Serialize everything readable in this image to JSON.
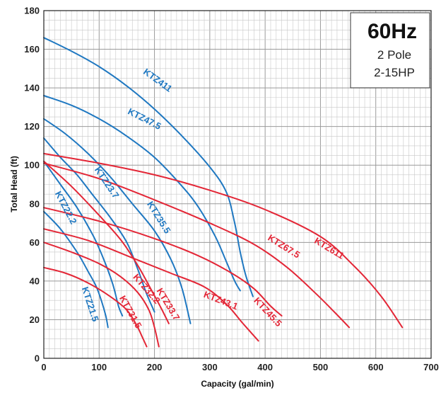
{
  "chart_data": {
    "type": "line",
    "title": "",
    "xlabel": "Capacity (gal/min)",
    "ylabel": "Total Head (ft)",
    "xlim": [
      0,
      700
    ],
    "ylim": [
      0,
      180
    ],
    "x_ticks": [
      0,
      100,
      200,
      300,
      400,
      500,
      600,
      700
    ],
    "y_ticks": [
      0,
      20,
      40,
      60,
      80,
      100,
      120,
      140,
      160,
      180
    ],
    "grid": true,
    "info_box": {
      "frequency": "60Hz",
      "pole": "2 Pole",
      "power": "2-15HP"
    },
    "colors": {
      "blue_series": "#1f78c1",
      "red_series": "#e32636",
      "grid": "#c8c8c8"
    },
    "series": [
      {
        "name": "KTZ411",
        "color": "#1f78c1",
        "points": [
          [
            0,
            166
          ],
          [
            50,
            159
          ],
          [
            100,
            151
          ],
          [
            150,
            141
          ],
          [
            200,
            129
          ],
          [
            250,
            115
          ],
          [
            300,
            99
          ],
          [
            330,
            86
          ],
          [
            345,
            70
          ],
          [
            355,
            55
          ],
          [
            365,
            43
          ],
          [
            378,
            32
          ]
        ]
      },
      {
        "name": "KTZ47.5",
        "color": "#1f78c1",
        "points": [
          [
            0,
            136
          ],
          [
            50,
            131
          ],
          [
            100,
            124
          ],
          [
            150,
            115
          ],
          [
            200,
            104
          ],
          [
            250,
            89
          ],
          [
            280,
            78
          ],
          [
            310,
            63
          ],
          [
            330,
            50
          ],
          [
            345,
            40
          ],
          [
            355,
            35
          ]
        ]
      },
      {
        "name": "KTZ35.5",
        "color": "#1f78c1",
        "points": [
          [
            0,
            124
          ],
          [
            40,
            116
          ],
          [
            80,
            106
          ],
          [
            120,
            94
          ],
          [
            160,
            80
          ],
          [
            200,
            66
          ],
          [
            230,
            51
          ],
          [
            250,
            36
          ],
          [
            265,
            18
          ]
        ]
      },
      {
        "name": "KTZ23.7",
        "color": "#1f78c1",
        "points": [
          [
            0,
            114
          ],
          [
            30,
            104
          ],
          [
            60,
            95
          ],
          [
            90,
            84
          ],
          [
            120,
            73
          ],
          [
            150,
            60
          ],
          [
            170,
            46
          ],
          [
            185,
            34
          ],
          [
            200,
            24
          ]
        ]
      },
      {
        "name": "KTZ22.2",
        "color": "#1f78c1",
        "points": [
          [
            0,
            102
          ],
          [
            30,
            90
          ],
          [
            60,
            78
          ],
          [
            90,
            63
          ],
          [
            110,
            50
          ],
          [
            125,
            38
          ],
          [
            135,
            27
          ],
          [
            142,
            22
          ]
        ]
      },
      {
        "name": "KTZ21.5",
        "color": "#1f78c1",
        "points": [
          [
            0,
            76
          ],
          [
            30,
            67
          ],
          [
            60,
            55
          ],
          [
            80,
            45
          ],
          [
            95,
            37
          ],
          [
            105,
            29
          ],
          [
            112,
            22
          ],
          [
            116,
            16
          ]
        ]
      },
      {
        "name": "KTZ611",
        "color": "#e32636",
        "points": [
          [
            0,
            106
          ],
          [
            100,
            101
          ],
          [
            200,
            95
          ],
          [
            300,
            87
          ],
          [
            400,
            77
          ],
          [
            500,
            63
          ],
          [
            560,
            48
          ],
          [
            610,
            32
          ],
          [
            648,
            16
          ]
        ]
      },
      {
        "name": "KTZ67.5",
        "color": "#e32636",
        "points": [
          [
            0,
            101
          ],
          [
            100,
            93
          ],
          [
            200,
            82
          ],
          [
            300,
            70
          ],
          [
            380,
            59
          ],
          [
            440,
            47
          ],
          [
            490,
            34
          ],
          [
            525,
            24
          ],
          [
            552,
            16
          ]
        ]
      },
      {
        "name": "KTZ45.5",
        "color": "#e32636",
        "points": [
          [
            0,
            78
          ],
          [
            100,
            71
          ],
          [
            200,
            62
          ],
          [
            280,
            53
          ],
          [
            340,
            44
          ],
          [
            380,
            36
          ],
          [
            410,
            27
          ],
          [
            430,
            22
          ]
        ]
      },
      {
        "name": "KTZ43.1",
        "color": "#e32636",
        "points": [
          [
            0,
            67
          ],
          [
            80,
            61
          ],
          [
            160,
            52
          ],
          [
            230,
            44
          ],
          [
            290,
            37
          ],
          [
            330,
            28
          ],
          [
            360,
            18
          ],
          [
            388,
            9
          ]
        ]
      },
      {
        "name": "KTZ33.7",
        "color": "#e32636",
        "points": [
          [
            0,
            102
          ],
          [
            50,
            89
          ],
          [
            100,
            74
          ],
          [
            140,
            61
          ],
          [
            170,
            48
          ],
          [
            195,
            35
          ],
          [
            212,
            26
          ],
          [
            226,
            18
          ]
        ]
      },
      {
        "name": "KTZ32.2",
        "color": "#e32636",
        "points": [
          [
            0,
            60
          ],
          [
            50,
            55
          ],
          [
            100,
            49
          ],
          [
            140,
            42
          ],
          [
            170,
            34
          ],
          [
            190,
            25
          ],
          [
            200,
            16
          ],
          [
            208,
            6
          ]
        ]
      },
      {
        "name": "KTZ31.5",
        "color": "#e32636",
        "points": [
          [
            0,
            47
          ],
          [
            40,
            44
          ],
          [
            80,
            39
          ],
          [
            120,
            32
          ],
          [
            150,
            25
          ],
          [
            168,
            17
          ],
          [
            178,
            11
          ],
          [
            186,
            6
          ]
        ]
      }
    ],
    "labels": [
      {
        "text": "KTZ411",
        "color": "#1f78c1",
        "x": 206,
        "y": 144,
        "angle": 36
      },
      {
        "text": "KTZ47.5",
        "color": "#1f78c1",
        "x": 182,
        "y": 124,
        "angle": 27
      },
      {
        "text": "KTZ35.5",
        "color": "#1f78c1",
        "x": 208,
        "y": 73,
        "angle": 58
      },
      {
        "text": "KTZ23.7",
        "color": "#1f78c1",
        "x": 114,
        "y": 91,
        "angle": 56
      },
      {
        "text": "KTZ22.2",
        "color": "#1f78c1",
        "x": 40,
        "y": 78,
        "angle": 62
      },
      {
        "text": "KTZ21.5",
        "color": "#1f78c1",
        "x": 84,
        "y": 28,
        "angle": 72
      },
      {
        "text": "KTZ611",
        "color": "#e32636",
        "x": 516,
        "y": 57,
        "angle": 31
      },
      {
        "text": "KTZ67.5",
        "color": "#e32636",
        "x": 434,
        "y": 58,
        "angle": 32
      },
      {
        "text": "KTZ45.5",
        "color": "#e32636",
        "x": 405,
        "y": 24,
        "angle": 47
      },
      {
        "text": "KTZ43.1",
        "color": "#e32636",
        "x": 320,
        "y": 30,
        "angle": 21
      },
      {
        "text": "KTZ33.7",
        "color": "#e32636",
        "x": 225,
        "y": 28,
        "angle": 59
      },
      {
        "text": "KTZ32.2",
        "color": "#e32636",
        "x": 186,
        "y": 36,
        "angle": 49
      },
      {
        "text": "KTZ31.5",
        "color": "#e32636",
        "x": 157,
        "y": 24,
        "angle": 61
      }
    ]
  }
}
